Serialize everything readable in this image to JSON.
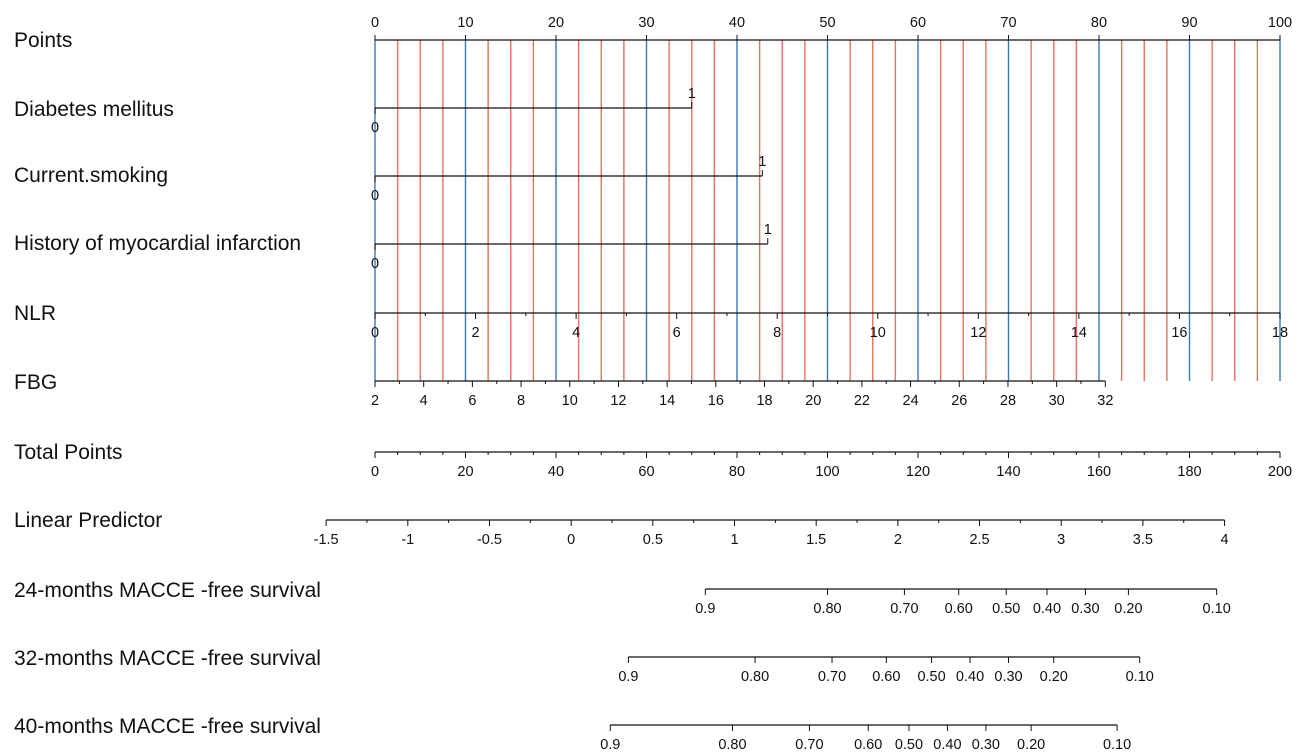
{
  "chart_data": {
    "type": "nomogram",
    "grid": true,
    "grid_colors": {
      "major": "#3a78b5",
      "minor": "#e8745a"
    },
    "rows": [
      {
        "label": "Points",
        "kind": "points",
        "scale": [
          0,
          100
        ],
        "ticks": [
          0,
          10,
          20,
          30,
          40,
          50,
          60,
          70,
          80,
          90,
          100
        ]
      },
      {
        "label": "Diabetes mellitus",
        "kind": "categorical",
        "levels": [
          {
            "label": "0",
            "points": 0
          },
          {
            "label": "1",
            "points": 35
          }
        ]
      },
      {
        "label": "Current.smoking",
        "kind": "categorical",
        "levels": [
          {
            "label": "0",
            "points": 0
          },
          {
            "label": "1",
            "points": 42.8
          }
        ]
      },
      {
        "label": "History of myocardial infarction",
        "kind": "categorical",
        "levels": [
          {
            "label": "0",
            "points": 0
          },
          {
            "label": "1",
            "points": 43.4
          }
        ]
      },
      {
        "label": "NLR",
        "kind": "continuous",
        "values": [
          0,
          18
        ],
        "points": [
          0,
          100
        ],
        "ticks": [
          0,
          2,
          4,
          6,
          8,
          10,
          12,
          14,
          16,
          18
        ]
      },
      {
        "label": "FBG",
        "kind": "continuous",
        "values": [
          2,
          32
        ],
        "points": [
          0,
          80.7
        ],
        "ticks": [
          2,
          4,
          6,
          8,
          10,
          12,
          14,
          16,
          18,
          20,
          22,
          24,
          26,
          28,
          30,
          32
        ]
      },
      {
        "label": "Total Points",
        "kind": "total",
        "scale": [
          0,
          200
        ],
        "ticks": [
          0,
          20,
          40,
          60,
          80,
          100,
          120,
          140,
          160,
          180,
          200
        ]
      },
      {
        "label": "Linear Predictor",
        "kind": "linear",
        "total_at_minus_1_5": -10.8,
        "total_per_unit": 36.1,
        "ticks": [
          "-1.5",
          "-1",
          "-0.5",
          "0",
          "0.5",
          "1",
          "1.5",
          "2",
          "2.5",
          "3",
          "3.5",
          "4"
        ]
      },
      {
        "label": "24-months MACCE  -free survival",
        "kind": "survival",
        "ticks": [
          {
            "label": "0.9",
            "total": 73
          },
          {
            "label": "0.80",
            "total": 100
          },
          {
            "label": "0.70",
            "total": 117
          },
          {
            "label": "0.60",
            "total": 129
          },
          {
            "label": "0.50",
            "total": 139.5
          },
          {
            "label": "0.40",
            "total": 148.5
          },
          {
            "label": "0.30",
            "total": 157
          },
          {
            "label": "0.20",
            "total": 166.5
          },
          {
            "label": "0.10",
            "total": 186
          }
        ]
      },
      {
        "label": "32-months MACCE  -free survival",
        "kind": "survival",
        "ticks": [
          {
            "label": "0.9",
            "total": 56
          },
          {
            "label": "0.80",
            "total": 84
          },
          {
            "label": "0.70",
            "total": 101
          },
          {
            "label": "0.60",
            "total": 113
          },
          {
            "label": "0.50",
            "total": 123
          },
          {
            "label": "0.40",
            "total": 131.5
          },
          {
            "label": "0.30",
            "total": 140
          },
          {
            "label": "0.20",
            "total": 150
          },
          {
            "label": "0.10",
            "total": 169
          }
        ]
      },
      {
        "label": "40-months MACCE  -free survival",
        "kind": "survival",
        "ticks": [
          {
            "label": "0.9",
            "total": 52
          },
          {
            "label": "0.80",
            "total": 79
          },
          {
            "label": "0.70",
            "total": 96
          },
          {
            "label": "0.60",
            "total": 109
          },
          {
            "label": "0.50",
            "total": 118
          },
          {
            "label": "0.40",
            "total": 126.5
          },
          {
            "label": "0.30",
            "total": 135
          },
          {
            "label": "0.20",
            "total": 145
          },
          {
            "label": "0.10",
            "total": 164
          }
        ]
      }
    ]
  }
}
